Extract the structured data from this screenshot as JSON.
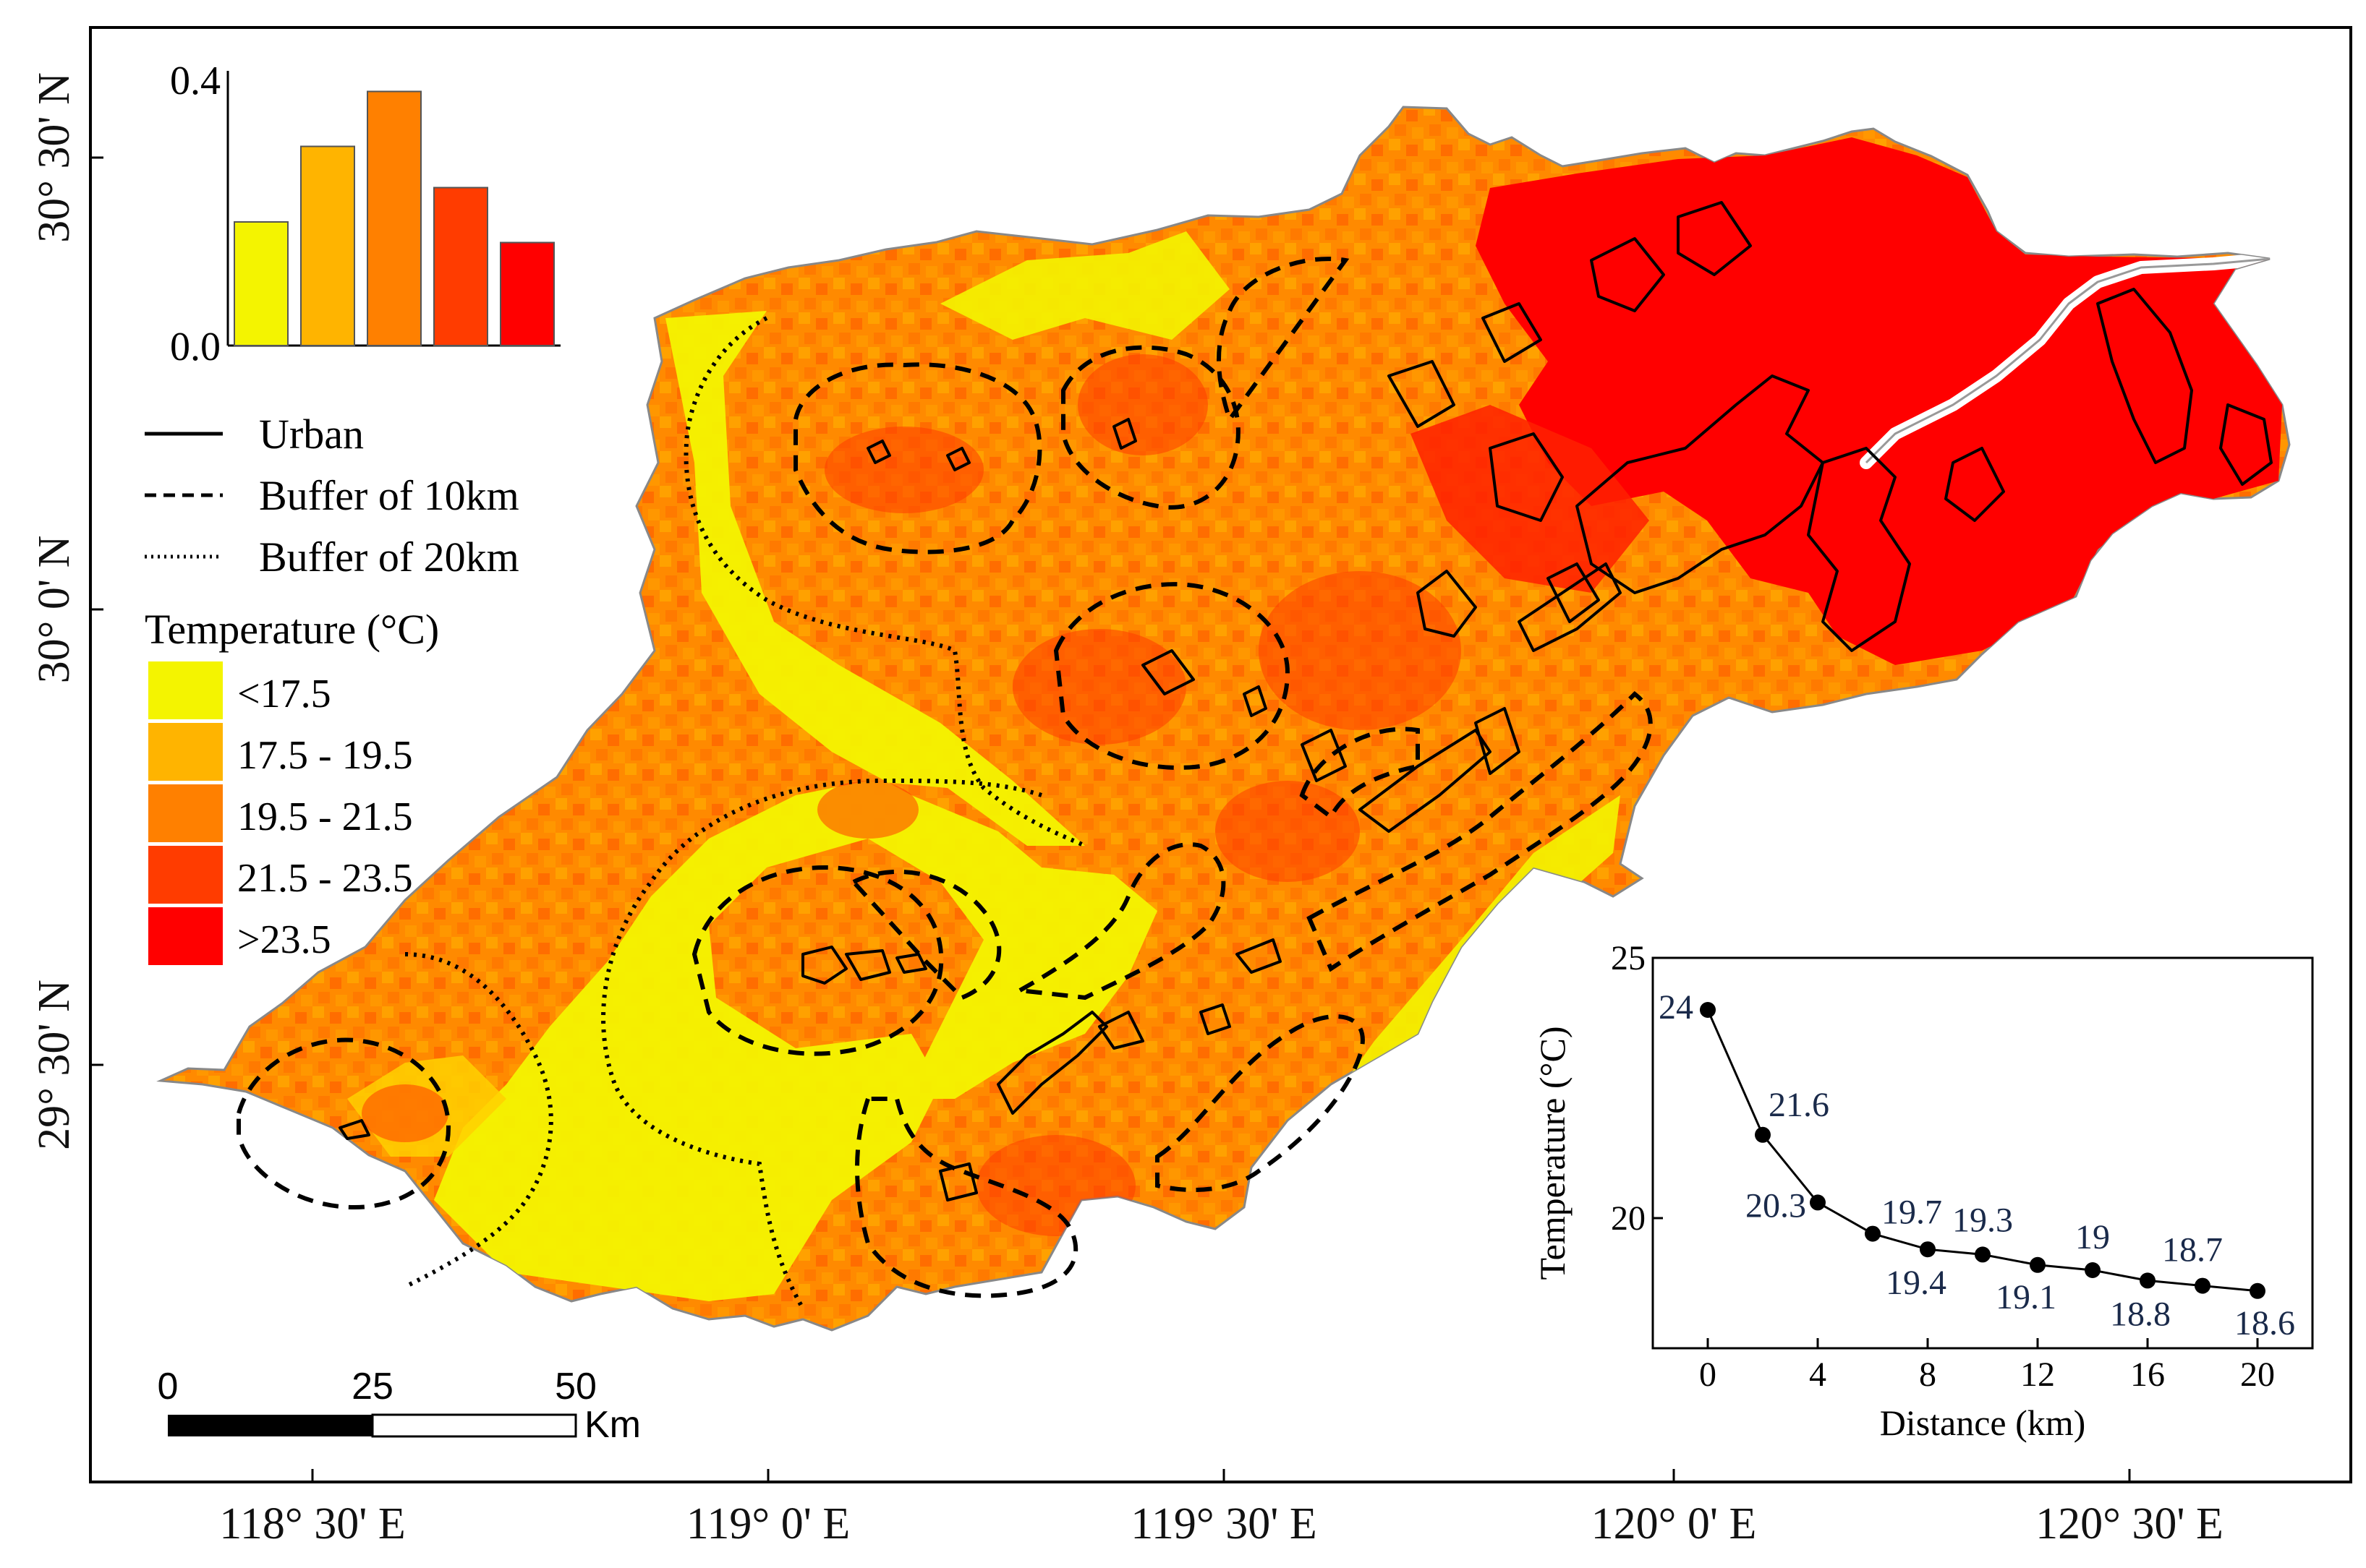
{
  "map": {
    "lon_ticks": [
      "118° 30' E",
      "119° 0' E",
      "119° 30' E",
      "120° 0' E",
      "120° 30' E"
    ],
    "lat_ticks": [
      "30° 30' N",
      "30° 0' N",
      "29° 30' N"
    ],
    "scale_bar": {
      "ticks": [
        "0",
        "25",
        "50"
      ],
      "unit": "Km"
    },
    "legend_lines": [
      {
        "style": "solid",
        "label": "Urban"
      },
      {
        "style": "dashed",
        "label": "Buffer of 10km"
      },
      {
        "style": "dotted",
        "label": "Buffer of 20km"
      }
    ],
    "temperature_legend": {
      "title": "Temperature (°C)",
      "classes": [
        {
          "label": "<17.5",
          "color": "#f4f400"
        },
        {
          "label": "17.5 - 19.5",
          "color": "#ffb400"
        },
        {
          "label": "19.5 - 21.5",
          "color": "#ff8000"
        },
        {
          "label": "21.5 - 23.5",
          "color": "#ff3c00"
        },
        {
          "label": ">23.5",
          "color": "#ff0000"
        }
      ]
    },
    "colors": {
      "region_base": "#ff8a00",
      "yellow": "#f4f400",
      "orange_light": "#ffb400",
      "red_orange": "#ff3c00",
      "red": "#ff0000",
      "urban_line": "#000000",
      "river": "#ffffff"
    }
  },
  "chart_data": [
    {
      "type": "bar",
      "title": "",
      "categories": [
        "<17.5",
        "17.5 - 19.5",
        "19.5 - 21.5",
        "21.5 - 23.5",
        ">23.5"
      ],
      "values": [
        0.18,
        0.29,
        0.37,
        0.23,
        0.15
      ],
      "colors": [
        "#f4f400",
        "#ffb400",
        "#ff8000",
        "#ff3c00",
        "#ff0000"
      ],
      "ylim": [
        0,
        0.4
      ],
      "yticks": [
        "0.0",
        "0.4"
      ],
      "xlabel": "",
      "ylabel": ""
    },
    {
      "type": "line",
      "title": "",
      "x": [
        0,
        2,
        4,
        6,
        8,
        10,
        12,
        14,
        16,
        18,
        20
      ],
      "y": [
        24,
        21.6,
        20.3,
        19.7,
        19.4,
        19.3,
        19.1,
        19,
        18.8,
        18.7,
        18.6
      ],
      "labels": [
        "24",
        "21.6",
        "20.3",
        "19.7",
        "19.4",
        "19.3",
        "19.1",
        "19",
        "18.8",
        "18.7",
        "18.6"
      ],
      "xlabel": "Distance (km)",
      "ylabel": "Temperature (°C)",
      "xticks": [
        "0",
        "4",
        "8",
        "12",
        "16",
        "20"
      ],
      "yticks": [
        "20",
        "25"
      ],
      "xlim": [
        -2,
        22
      ],
      "ylim": [
        17.5,
        25
      ]
    }
  ]
}
